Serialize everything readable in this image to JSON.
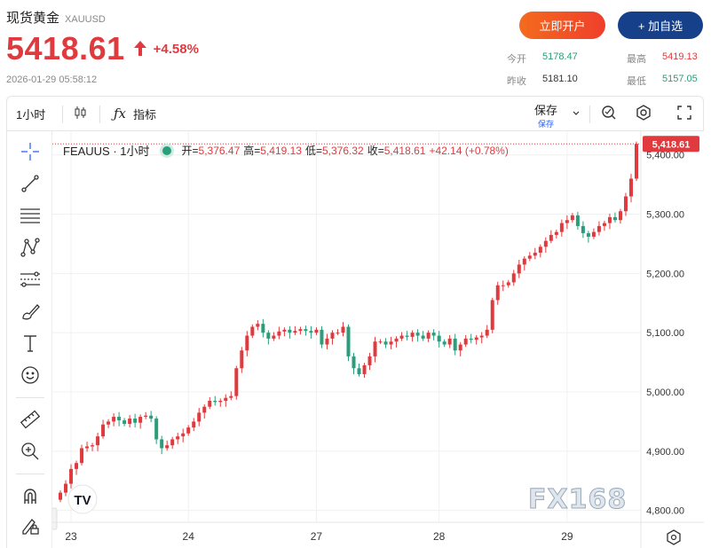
{
  "header": {
    "title": "现货黄金",
    "symbol": "XAUUSD",
    "price": "5418.61",
    "change_pct": "+4.58%",
    "timestamp": "2026-01-29 05:58:12",
    "open_account_label": "立即开户",
    "add_watch_label": "+ 加自选"
  },
  "stats": {
    "open_label": "今开",
    "open_value": "5178.47",
    "high_label": "最高",
    "high_value": "5419.13",
    "prev_close_label": "昨收",
    "prev_close_value": "5181.10",
    "low_label": "最低",
    "low_value": "5157.05"
  },
  "toolbar": {
    "interval": "1小时",
    "indicators_label": "指标",
    "save_label": "保存",
    "save_sub_label": "保存"
  },
  "legend": {
    "symbol": "FEAUUS · 1小时",
    "open_label": "开=",
    "open_value": "5,376.47",
    "high_label": "高=",
    "high_value": "5,419.13",
    "low_label": "低=",
    "low_value": "5,376.32",
    "close_label": "收=",
    "close_value": "5,418.61",
    "change": "+42.14 (+0.78%)"
  },
  "watermark": "FX168",
  "colors": {
    "up": "#e03a3e",
    "down": "#2a9d7b",
    "accent": "#17408b",
    "orange": "#f46b1e"
  },
  "icons": [
    "crosshair-icon",
    "trend-line-icon",
    "horizontal-lines-icon",
    "pattern-icon",
    "fib-icon",
    "brush-icon",
    "text-icon",
    "emoji-icon",
    "ruler-icon",
    "zoom-in-icon",
    "magnet-icon",
    "lock-edit-icon",
    "candle-type-icon",
    "fx-icon",
    "chevron-down-icon",
    "alert-icon",
    "settings-icon",
    "fullscreen-icon"
  ],
  "chart_data": {
    "type": "candlestick",
    "y_ticks": [
      "5,400.00",
      "5,300.00",
      "5,200.00",
      "5,100.00",
      "5,000.00",
      "4,900.00",
      "4,800.00"
    ],
    "ylim": [
      4780,
      5440
    ],
    "x_ticks": [
      "23",
      "24",
      "27",
      "28",
      "29"
    ],
    "last_price_label": "5,418.61",
    "last_price": 5418.61,
    "closes": [
      4830,
      4845,
      4870,
      4880,
      4905,
      4908,
      4910,
      4925,
      4945,
      4950,
      4958,
      4952,
      4946,
      4955,
      4948,
      4958,
      4960,
      4955,
      4920,
      4905,
      4910,
      4920,
      4925,
      4930,
      4940,
      4950,
      4965,
      4975,
      4985,
      4983,
      4985,
      4990,
      4993,
      5040,
      5070,
      5095,
      5110,
      5115,
      5100,
      5090,
      5095,
      5102,
      5105,
      5100,
      5103,
      5106,
      5103,
      5100,
      5105,
      5080,
      5090,
      5100,
      5100,
      5110,
      5060,
      5040,
      5030,
      5045,
      5060,
      5085,
      5085,
      5080,
      5085,
      5090,
      5095,
      5093,
      5100,
      5095,
      5090,
      5100,
      5095,
      5085,
      5080,
      5090,
      5070,
      5080,
      5090,
      5088,
      5092,
      5095,
      5105,
      5155,
      5180,
      5180,
      5185,
      5200,
      5215,
      5225,
      5230,
      5235,
      5245,
      5255,
      5265,
      5270,
      5285,
      5290,
      5298,
      5280,
      5268,
      5262,
      5270,
      5280,
      5285,
      5295,
      5290,
      5305,
      5330,
      5360,
      5418.61
    ]
  }
}
